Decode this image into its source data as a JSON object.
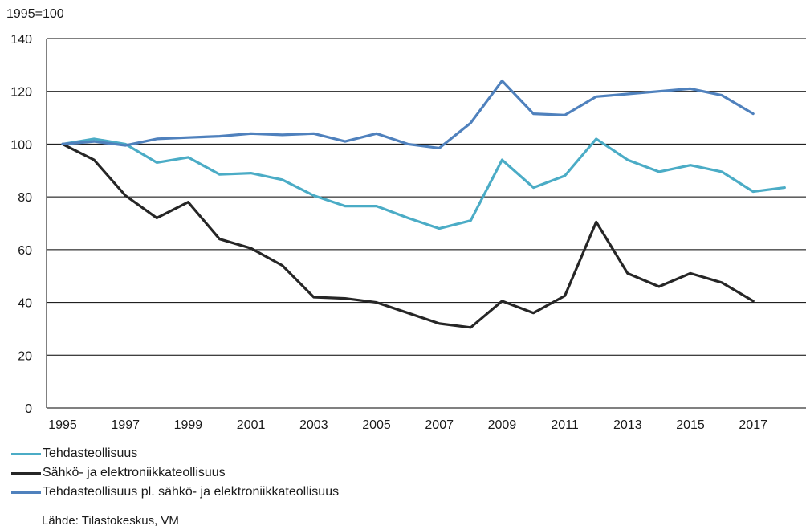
{
  "chart_data": {
    "type": "line",
    "unit_label": "1995=100",
    "x": [
      1995,
      1996,
      1997,
      1998,
      1999,
      2000,
      2001,
      2002,
      2003,
      2004,
      2005,
      2006,
      2007,
      2008,
      2009,
      2010,
      2011,
      2012,
      2013,
      2014,
      2015,
      2016,
      2017,
      2018
    ],
    "x_tick_labels": [
      "1995",
      "1997",
      "1999",
      "2001",
      "2003",
      "2005",
      "2007",
      "2009",
      "2011",
      "2013",
      "2015",
      "2017"
    ],
    "y_tick_labels": [
      "0",
      "20",
      "40",
      "60",
      "80",
      "100",
      "120",
      "140"
    ],
    "ylim": [
      0,
      140
    ],
    "grid": "horizontal",
    "legend_position": "bottom-left",
    "series": [
      {
        "name": "Tehdasteollisuus",
        "color": "#4bacc6",
        "values": [
          100,
          102,
          100,
          93,
          95,
          88.5,
          89,
          86.5,
          80.5,
          76.5,
          76.5,
          72,
          68,
          71,
          94,
          83.5,
          88,
          102,
          94,
          89.5,
          92,
          89.5,
          82,
          83.5
        ]
      },
      {
        "name": "Sähkö- ja elektroniikkateollisuus",
        "color": "#262626",
        "values": [
          100,
          94,
          80.5,
          72,
          78,
          64,
          60.5,
          54,
          42,
          41.5,
          40,
          36,
          32,
          30.5,
          40.5,
          36,
          42.5,
          70.5,
          51,
          46,
          51,
          47.5,
          40.5,
          null
        ]
      },
      {
        "name": "Tehdasteollisuus pl. sähkö- ja elektroniikkateollisuus",
        "color": "#4f81bd",
        "values": [
          100,
          101,
          99.5,
          102,
          102.5,
          103,
          104,
          103.5,
          104,
          101,
          104,
          100,
          98.5,
          108,
          124,
          111.5,
          111,
          118,
          119,
          120,
          121,
          118.5,
          111.5,
          null
        ]
      }
    ]
  },
  "source": "Lähde: Tilastokeskus,  VM"
}
